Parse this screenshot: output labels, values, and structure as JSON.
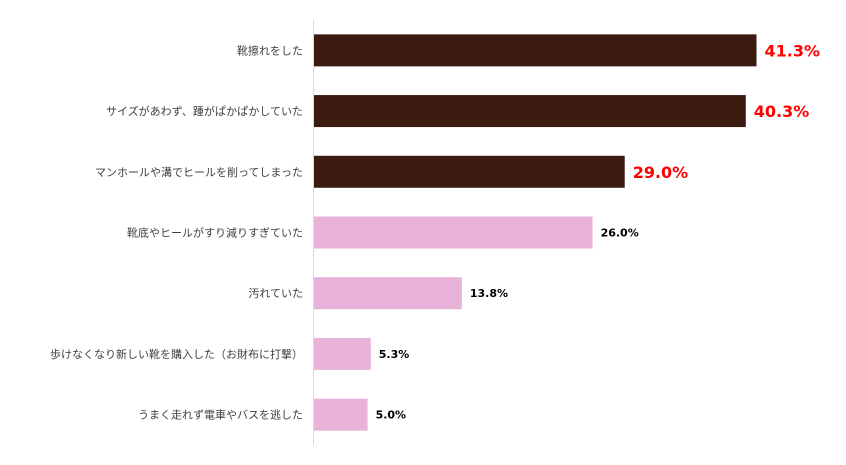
{
  "chart_data": {
    "type": "bar",
    "orientation": "horizontal",
    "categories": [
      "靴擦れをした",
      "サイズがあわず、踵がぱかぱかしていた",
      "マンホールや溝でヒールを削ってしまった",
      "靴底やヒールがすり減りすぎていた",
      "汚れていた",
      "歩けなくなり新しい靴を購入した（お財布に打撃）",
      "うまく走れず電車やバスを逃した"
    ],
    "values": [
      41.3,
      40.3,
      29.0,
      26.0,
      13.8,
      5.3,
      5.0
    ],
    "value_labels": [
      "41.3%",
      "40.3%",
      "29.0%",
      "26.0%",
      "13.8%",
      "5.3%",
      "5.0%"
    ],
    "xlim": [
      0,
      42
    ],
    "grid": false,
    "legend": "none",
    "colors": {
      "top": "#3b1a0f",
      "other": "#e9b3d9",
      "top_label": "#ff0000",
      "other_label": "#000000",
      "axis": "#d9d9d9",
      "category_text": "#404040"
    },
    "highlight_count": 3
  }
}
